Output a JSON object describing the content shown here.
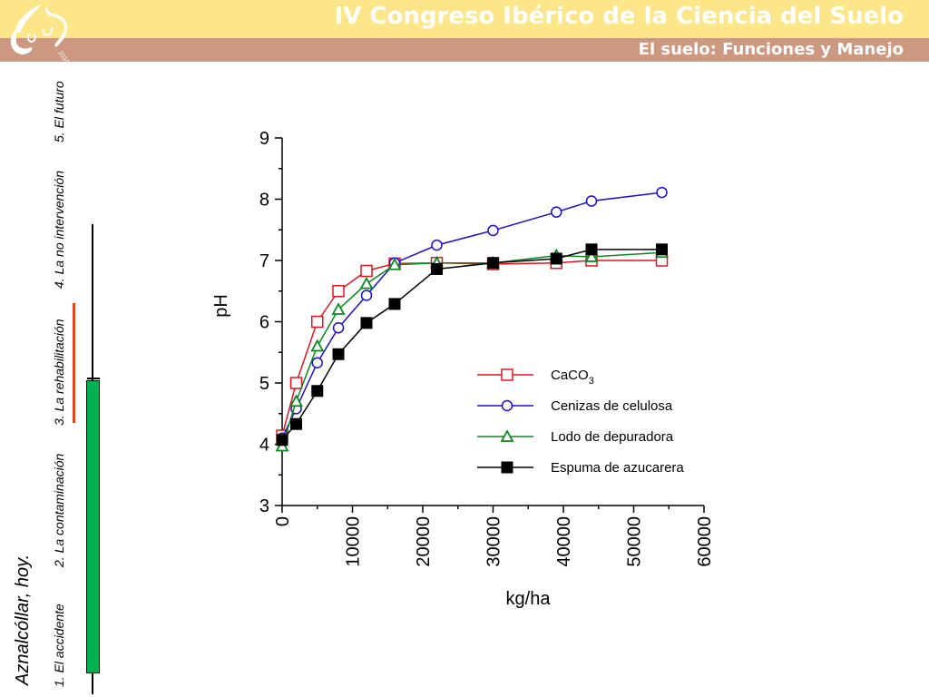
{
  "header": {
    "title": "IV Congreso Ibérico de la Ciencia del Suelo",
    "subtitle": "El suelo: Funciones y Manejo",
    "logo_year": "2010",
    "colors": {
      "top_band": "#fde68a",
      "bottom_band": "#cc9980",
      "text": "#ffffff"
    }
  },
  "sidebar": {
    "place": "Aznalcóllar, hoy.",
    "nav": [
      {
        "label": "1. El accidente"
      },
      {
        "label": "2. La contaminación"
      },
      {
        "label": "3. La rehabilitación"
      },
      {
        "label": "4. La no intervención"
      },
      {
        "label": "5. El futuro"
      }
    ],
    "timeline_colors": {
      "line": "#000000",
      "highlight_red": "#e5411f",
      "highlight_green": "#00b050"
    }
  },
  "chart_data": {
    "type": "line",
    "title": "",
    "xlabel": "kg/ha",
    "ylabel": "pH",
    "xlim": [
      0,
      60000
    ],
    "ylim": [
      3,
      9
    ],
    "xticks": [
      0,
      10000,
      20000,
      30000,
      40000,
      50000,
      60000
    ],
    "yticks": [
      3,
      4,
      5,
      6,
      7,
      8,
      9
    ],
    "grid": false,
    "legend_position": "lower-right",
    "x": [
      0,
      2000,
      5000,
      8000,
      12000,
      16000,
      22000,
      30000,
      39000,
      44000,
      54000
    ],
    "series": [
      {
        "name": "CaCO",
        "subscript": "3",
        "color": "#e0141e",
        "marker": "square-open",
        "values": [
          4.14,
          5.0,
          6.0,
          6.5,
          6.83,
          6.95,
          6.96,
          6.94,
          6.96,
          7.0,
          7.0
        ]
      },
      {
        "name": "Cenizas de celulosa",
        "subscript": "",
        "color": "#1a0fd0",
        "marker": "circle-open",
        "values": [
          4.1,
          4.58,
          5.33,
          5.9,
          6.43,
          6.96,
          7.25,
          7.49,
          7.79,
          7.97,
          8.11
        ]
      },
      {
        "name": "Lodo de depuradora",
        "subscript": "",
        "color": "#0a8a1e",
        "marker": "triangle-open",
        "values": [
          3.97,
          4.7,
          5.6,
          6.2,
          6.62,
          6.93,
          6.96,
          6.96,
          7.08,
          7.06,
          7.13
        ]
      },
      {
        "name": "Espuma de azucarera",
        "subscript": "",
        "color": "#000000",
        "marker": "square-filled",
        "values": [
          4.07,
          4.33,
          4.87,
          5.47,
          5.98,
          6.29,
          6.86,
          6.96,
          7.03,
          7.18,
          7.18
        ]
      }
    ]
  }
}
